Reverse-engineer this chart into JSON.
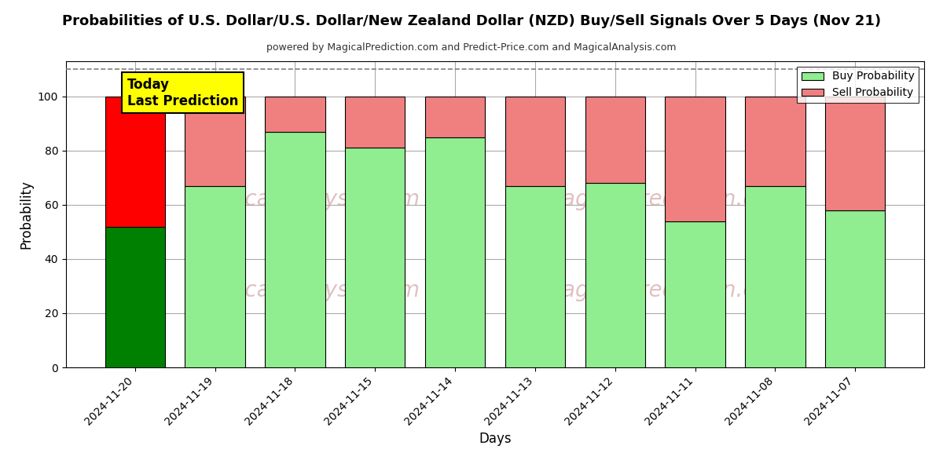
{
  "title": "Probabilities of U.S. Dollar/U.S. Dollar/New Zealand Dollar (NZD) Buy/Sell Signals Over 5 Days (Nov 21)",
  "subtitle": "powered by MagicalPrediction.com and Predict-Price.com and MagicalAnalysis.com",
  "xlabel": "Days",
  "ylabel": "Probability",
  "dates": [
    "2024-11-20",
    "2024-11-19",
    "2024-11-18",
    "2024-11-15",
    "2024-11-14",
    "2024-11-13",
    "2024-11-12",
    "2024-11-11",
    "2024-11-08",
    "2024-11-07"
  ],
  "buy_values": [
    52,
    67,
    87,
    81,
    85,
    67,
    68,
    54,
    67,
    58
  ],
  "sell_values": [
    48,
    33,
    13,
    19,
    15,
    33,
    32,
    46,
    33,
    42
  ],
  "today_buy_color": "#008000",
  "today_sell_color": "#ff0000",
  "buy_color": "#90ee90",
  "sell_color": "#f08080",
  "legend_buy_color": "#90ee90",
  "legend_sell_color": "#f08080",
  "ylim": [
    0,
    113
  ],
  "yticks": [
    0,
    20,
    40,
    60,
    80,
    100
  ],
  "dashed_line_y": 110,
  "today_label": "Today\nLast Prediction",
  "background_color": "#ffffff",
  "grid_color": "#aaaaaa",
  "bar_edge_color": "#000000",
  "bar_width": 0.75,
  "watermark_color": "#cc9999"
}
